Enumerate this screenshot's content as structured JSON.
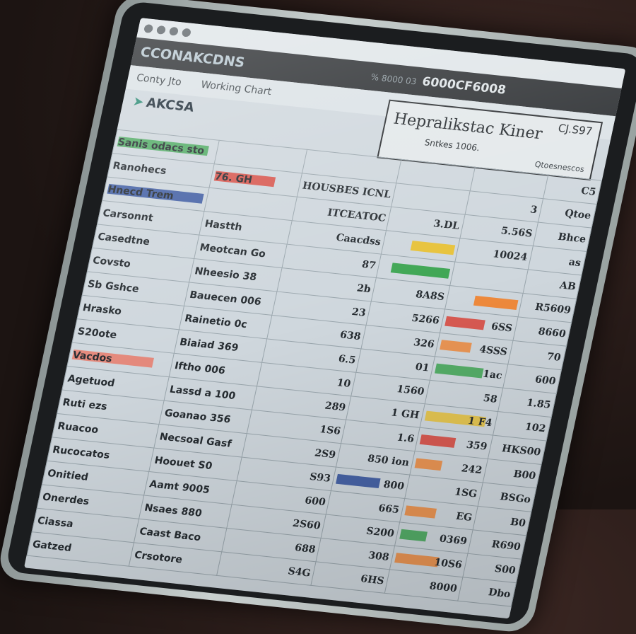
{
  "window": {
    "title": "CCONAKCDNS",
    "code_prefix": "% 8000 03",
    "code": "6000CF6008"
  },
  "toolbar": {
    "items": [
      "Conty Jto",
      "Working Chart"
    ]
  },
  "brand": "AKCSA",
  "panel": {
    "title": "Hepralikstac Kiner",
    "code": "CJ.S97",
    "subtitle": "Sntkes 1006.",
    "sub2": "Qtoesnescos"
  },
  "colors": {
    "green": "#3fa654",
    "red": "#d9443a",
    "yellow": "#e7c23a",
    "orange": "#ef8a3c",
    "blue": "#2f4f9c",
    "purple": "#6b5fb0",
    "salmon": "#e77b6b"
  },
  "table": {
    "rows": [
      {
        "cells": [
          "Sanis odacs sto",
          "",
          "",
          "",
          "",
          "C5"
        ],
        "bar": "green",
        "barcol": 0,
        "frac": 0.9
      },
      {
        "cells": [
          "Ranohecs",
          "76. GH",
          "HOUSBES ICNL",
          "",
          "3",
          "Qtoe"
        ],
        "bar": "red",
        "barcol": 1,
        "frac": 0.7
      },
      {
        "cells": [
          "Hnecd Trem",
          "",
          "ITCEATOC",
          "3.DL",
          "5.56S",
          "Bhce"
        ],
        "bar": "blue",
        "barcol": 0,
        "frac": 0.95
      },
      {
        "cells": [
          "Carsonnt",
          "Hastth",
          "Caacdss",
          "",
          "10024",
          "as"
        ],
        "bar": "yellow",
        "barcol": 3,
        "frac": 0.6
      },
      {
        "cells": [
          "Casedtne",
          "Meotcan Go",
          "87",
          "",
          "",
          "AB"
        ],
        "bar": "green",
        "barcol": 3,
        "frac": 0.8
      },
      {
        "cells": [
          "Covsto",
          "Nheesio 38",
          "2b",
          "8A8S",
          "",
          "R5609"
        ],
        "bar": "orange",
        "barcol": 4,
        "frac": 0.5
      },
      {
        "cells": [
          "Sb Gshce",
          "Bauecen 006",
          "23",
          "5266",
          "6SS",
          "8660"
        ],
        "bar": "red",
        "barcol": 4,
        "frac": 0.45
      },
      {
        "cells": [
          "Hrasko",
          "Rainetio 0c",
          "638",
          "326",
          "4SSS",
          "70"
        ],
        "bar": "orange",
        "barcol": 4,
        "frac": 0.35
      },
      {
        "cells": [
          "S20ote",
          "Biaiad 369",
          "6.5",
          "01",
          "1ac",
          "600"
        ],
        "bar": "green",
        "barcol": 4,
        "frac": 0.55
      },
      {
        "cells": [
          "Vacdos",
          "Iftho 006",
          "10",
          "1560",
          "58",
          "1.85"
        ],
        "bar": "salmon",
        "barcol": 0,
        "frac": 0.8
      },
      {
        "cells": [
          "Agetuod",
          "Lassd a 100",
          "289",
          "1 GH",
          "1 F4",
          "102"
        ],
        "bar": "yellow",
        "barcol": 4,
        "frac": 0.7
      },
      {
        "cells": [
          "Ruti ezs",
          "Goanao 356",
          "1S6",
          "1.6",
          "359",
          "HKS00"
        ],
        "bar": "red",
        "barcol": 4,
        "frac": 0.4
      },
      {
        "cells": [
          "Ruacoo",
          "Necsoal Gasf",
          "2S9",
          "850 ion",
          "242",
          "B00"
        ],
        "bar": "orange",
        "barcol": 4,
        "frac": 0.3
      },
      {
        "cells": [
          "Rucocatos",
          "Hoouet S0",
          "S93",
          "800",
          "1SG",
          "BSGo"
        ],
        "bar": "blue",
        "barcol": 3,
        "frac": 0.6
      },
      {
        "cells": [
          "Onitied",
          "Aamt 9005",
          "600",
          "665",
          "EG",
          "B0"
        ],
        "bar": "orange",
        "barcol": 4,
        "frac": 0.35
      },
      {
        "cells": [
          "Onerdes",
          "Nsaes 880",
          "2S60",
          "S200",
          "0369",
          "R690"
        ],
        "bar": "green",
        "barcol": 4,
        "frac": 0.3
      },
      {
        "cells": [
          "Ciassa",
          "Caast Baco",
          "688",
          "308",
          "10S6",
          "S00"
        ],
        "bar": "orange",
        "barcol": 4,
        "frac": 0.5
      },
      {
        "cells": [
          "Gatzed",
          "Crsotore",
          "S4G",
          "6HS",
          "8000",
          "Dbo"
        ],
        "bar": "",
        "barcol": 0,
        "frac": 0
      }
    ]
  }
}
